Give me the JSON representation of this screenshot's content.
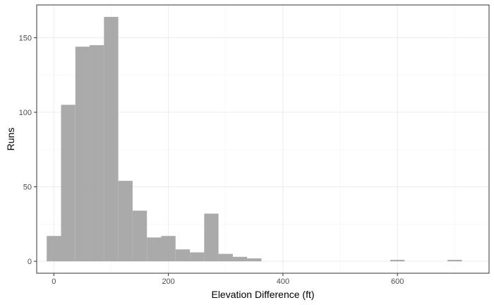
{
  "chart_data": {
    "type": "bar",
    "subtype": "histogram",
    "title": "",
    "xlabel": "Elevation Difference (ft)",
    "ylabel": "Runs",
    "xlim": [
      -30,
      760
    ],
    "ylim": [
      -8,
      172
    ],
    "x_ticks": [
      0,
      200,
      400,
      600
    ],
    "y_ticks": [
      0,
      50,
      100,
      150
    ],
    "bin_width": 25,
    "bins": [
      {
        "start": -12.5,
        "end": 12.5,
        "count": 17
      },
      {
        "start": 12.5,
        "end": 37.5,
        "count": 105
      },
      {
        "start": 37.5,
        "end": 62.5,
        "count": 144
      },
      {
        "start": 62.5,
        "end": 87.5,
        "count": 145
      },
      {
        "start": 87.5,
        "end": 112.5,
        "count": 164
      },
      {
        "start": 112.5,
        "end": 137.5,
        "count": 54
      },
      {
        "start": 137.5,
        "end": 162.5,
        "count": 34
      },
      {
        "start": 162.5,
        "end": 187.5,
        "count": 16
      },
      {
        "start": 187.5,
        "end": 212.5,
        "count": 17
      },
      {
        "start": 212.5,
        "end": 237.5,
        "count": 8
      },
      {
        "start": 237.5,
        "end": 262.5,
        "count": 6
      },
      {
        "start": 262.5,
        "end": 287.5,
        "count": 32
      },
      {
        "start": 287.5,
        "end": 312.5,
        "count": 5
      },
      {
        "start": 312.5,
        "end": 337.5,
        "count": 3
      },
      {
        "start": 337.5,
        "end": 362.5,
        "count": 2
      },
      {
        "start": 362.5,
        "end": 387.5,
        "count": 0
      },
      {
        "start": 387.5,
        "end": 412.5,
        "count": 0
      },
      {
        "start": 412.5,
        "end": 437.5,
        "count": 0
      },
      {
        "start": 437.5,
        "end": 462.5,
        "count": 0
      },
      {
        "start": 462.5,
        "end": 487.5,
        "count": 0
      },
      {
        "start": 487.5,
        "end": 512.5,
        "count": 0
      },
      {
        "start": 512.5,
        "end": 537.5,
        "count": 0
      },
      {
        "start": 537.5,
        "end": 562.5,
        "count": 0
      },
      {
        "start": 562.5,
        "end": 587.5,
        "count": 0
      },
      {
        "start": 587.5,
        "end": 612.5,
        "count": 1
      },
      {
        "start": 612.5,
        "end": 637.5,
        "count": 0
      },
      {
        "start": 637.5,
        "end": 662.5,
        "count": 0
      },
      {
        "start": 662.5,
        "end": 687.5,
        "count": 0
      },
      {
        "start": 687.5,
        "end": 712.5,
        "count": 1
      }
    ],
    "grid": true,
    "legend": "none",
    "colors": {
      "bar": "#aaaaaa",
      "grid_major": "#ebebeb",
      "grid_minor": "#f4f4f4",
      "panel_border": "#333333",
      "tick_text": "#4d4d4d"
    }
  }
}
